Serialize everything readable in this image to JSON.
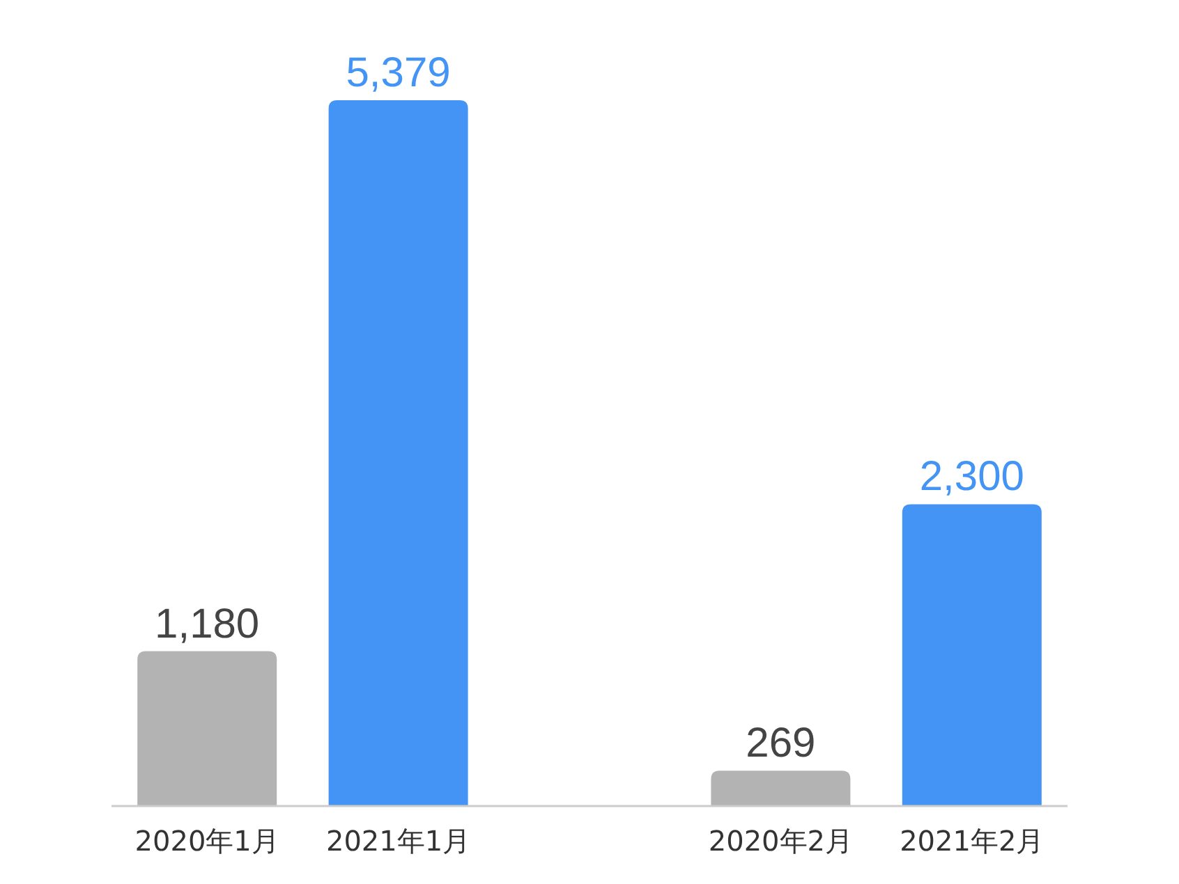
{
  "chart_data": {
    "type": "bar",
    "categories": [
      "2020年1月",
      "2021年1月",
      null,
      "2020年2月",
      "2021年2月"
    ],
    "values": [
      1180,
      5379,
      null,
      269,
      2300
    ],
    "colors": [
      "#b3b3b3",
      "#4394f4",
      null,
      "#b3b3b3",
      "#4394f4"
    ],
    "value_labels": [
      "1,180",
      "5,379",
      null,
      "269",
      "2,300"
    ]
  }
}
